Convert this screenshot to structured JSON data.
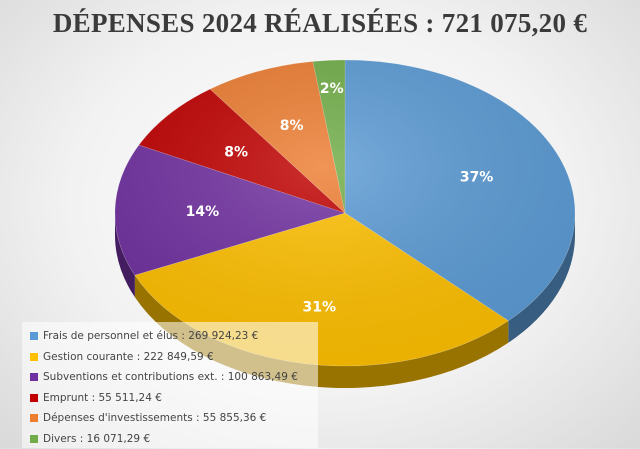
{
  "title": "DÉPENSES 2024 RÉALISÉES : 721 075,20 €",
  "chart_data": {
    "type": "pie",
    "title": "DÉPENSES 2024 RÉALISÉES : 721 075,20 €",
    "legend_position": "bottom-left",
    "slices": [
      {
        "name": "Frais de personnel et élus : 269 924,23 €",
        "value": 269924.23,
        "label": "37%",
        "color": "#5B9BD5"
      },
      {
        "name": "Gestion courante : 222 849,59 €",
        "value": 222849.59,
        "label": "31%",
        "color": "#FFC000"
      },
      {
        "name": "Subventions et contributions ext. : 100 863,49 €",
        "value": 100863.49,
        "label": "14%",
        "color": "#7030A0"
      },
      {
        "name": "Emprunt : 55 511,24 €",
        "value": 55511.24,
        "label": "8%",
        "color": "#C00000"
      },
      {
        "name": "Dépenses d'investissements : 55 855,36 €",
        "value": 55855.36,
        "label": "8%",
        "color": "#ED7D31"
      },
      {
        "name": "Divers : 16 071,29 €",
        "value": 16071.29,
        "label": "2%",
        "color": "#70AD47"
      }
    ]
  }
}
